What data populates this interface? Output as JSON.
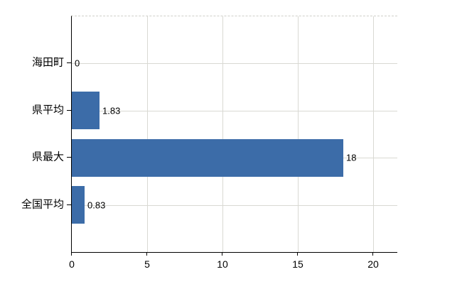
{
  "chart_data": {
    "type": "bar",
    "orientation": "horizontal",
    "title": "",
    "xlabel": "",
    "ylabel": "",
    "categories": [
      "海田町",
      "県平均",
      "県最大",
      "全国平均"
    ],
    "values": [
      0,
      1.83,
      18,
      0.83
    ],
    "value_labels": [
      "0",
      "1.83",
      "18",
      "0.83"
    ],
    "x_ticks": [
      "0",
      "5",
      "10",
      "15",
      "20"
    ],
    "x_tick_values": [
      0,
      5,
      10,
      15,
      20
    ],
    "xlim": [
      0,
      20
    ],
    "grid": true,
    "legend": false,
    "colors": {
      "bar": "#3c6ca8",
      "axis": "#000000",
      "gridline": "#d9d9d3",
      "top_border": "#cfcfc9",
      "text": "#000000",
      "background": "#ffffff"
    }
  }
}
